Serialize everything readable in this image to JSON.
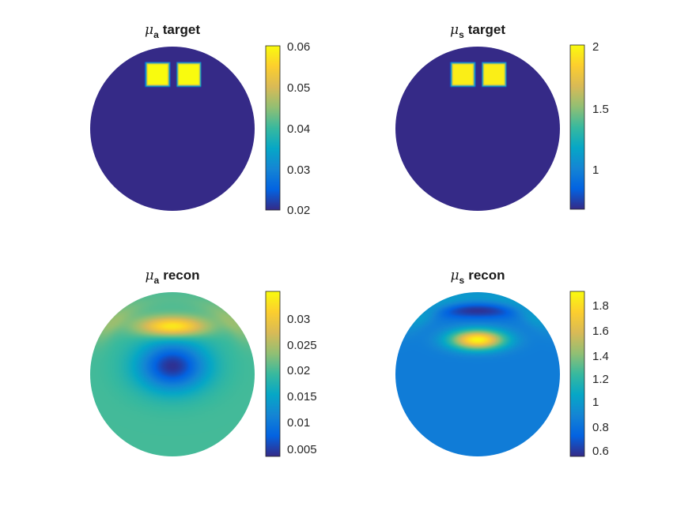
{
  "figure": {
    "colormap": "parula",
    "colormap_stops": [
      "#352a87",
      "#0363e1",
      "#1485d4",
      "#06a7c6",
      "#38b99e",
      "#92bf73",
      "#d9ba56",
      "#fcce2e",
      "#f9fb0e"
    ]
  },
  "chart_data": [
    {
      "type": "heatmap",
      "title": {
        "symbol": "μ",
        "subscript": "a",
        "word": "target"
      },
      "domain": "circle",
      "colorbar": {
        "ticks": [
          "0.06",
          "0.05",
          "0.04",
          "0.03",
          "0.02"
        ],
        "tick_values": [
          0.06,
          0.05,
          0.04,
          0.03,
          0.02
        ],
        "range": [
          0.02,
          0.06
        ]
      },
      "background_value": 0.02,
      "inclusions": [
        {
          "value": 0.06,
          "center": [
            -0.18,
            0.66
          ],
          "half_size": 0.12
        },
        {
          "value": 0.06,
          "center": [
            0.2,
            0.66
          ],
          "half_size": 0.12
        }
      ]
    },
    {
      "type": "heatmap",
      "title": {
        "symbol": "μ",
        "subscript": "s",
        "word": "target"
      },
      "domain": "circle",
      "colorbar": {
        "ticks": [
          "2",
          "1.5",
          "1"
        ],
        "tick_values": [
          2,
          1.5,
          1
        ],
        "range": [
          0.7,
          2.05
        ]
      },
      "background_value": 0.7,
      "inclusions": [
        {
          "value": 2.0,
          "center": [
            -0.18,
            0.66
          ],
          "half_size": 0.12
        },
        {
          "value": 2.0,
          "center": [
            0.2,
            0.66
          ],
          "half_size": 0.12
        }
      ]
    },
    {
      "type": "heatmap",
      "title": {
        "symbol": "μ",
        "subscript": "a",
        "word": "recon"
      },
      "domain": "circle",
      "colorbar": {
        "ticks": [
          "0.03",
          "0.025",
          "0.02",
          "0.015",
          "0.01",
          "0.005"
        ],
        "tick_values": [
          0.03,
          0.025,
          0.02,
          0.015,
          0.01,
          0.005
        ],
        "range": [
          0.0035,
          0.0345
        ]
      },
      "background_value": 0.0195,
      "features": [
        {
          "kind": "peak",
          "value": 0.034,
          "center": [
            0.0,
            0.58
          ],
          "radius_x": 0.4,
          "radius_y": 0.12
        },
        {
          "kind": "trough",
          "value": 0.004,
          "center": [
            0.0,
            0.1
          ],
          "radius_x": 0.42,
          "radius_y": 0.3
        },
        {
          "kind": "rim_ring",
          "value": 0.023,
          "center": [
            0.0,
            0.64
          ]
        }
      ]
    },
    {
      "type": "heatmap",
      "title": {
        "symbol": "μ",
        "subscript": "s",
        "word": "recon"
      },
      "domain": "circle",
      "colorbar": {
        "ticks": [
          "1.8",
          "1.6",
          "1.4",
          "1.2",
          "1",
          "0.8",
          "0.6"
        ],
        "tick_values": [
          1.8,
          1.6,
          1.4,
          1.2,
          1.0,
          0.8,
          0.6
        ],
        "range": [
          0.52,
          1.9
        ]
      },
      "background_value": 0.82,
      "features": [
        {
          "kind": "peak",
          "value": 1.88,
          "center": [
            0.0,
            0.42
          ],
          "radius_x": 0.33,
          "radius_y": 0.12
        },
        {
          "kind": "trough",
          "value": 0.53,
          "center": [
            0.0,
            0.78
          ],
          "radius_x": 0.6,
          "radius_y": 0.1
        },
        {
          "kind": "rim_ring",
          "value": 1.05,
          "center": [
            0.0,
            0.8
          ]
        }
      ]
    }
  ]
}
